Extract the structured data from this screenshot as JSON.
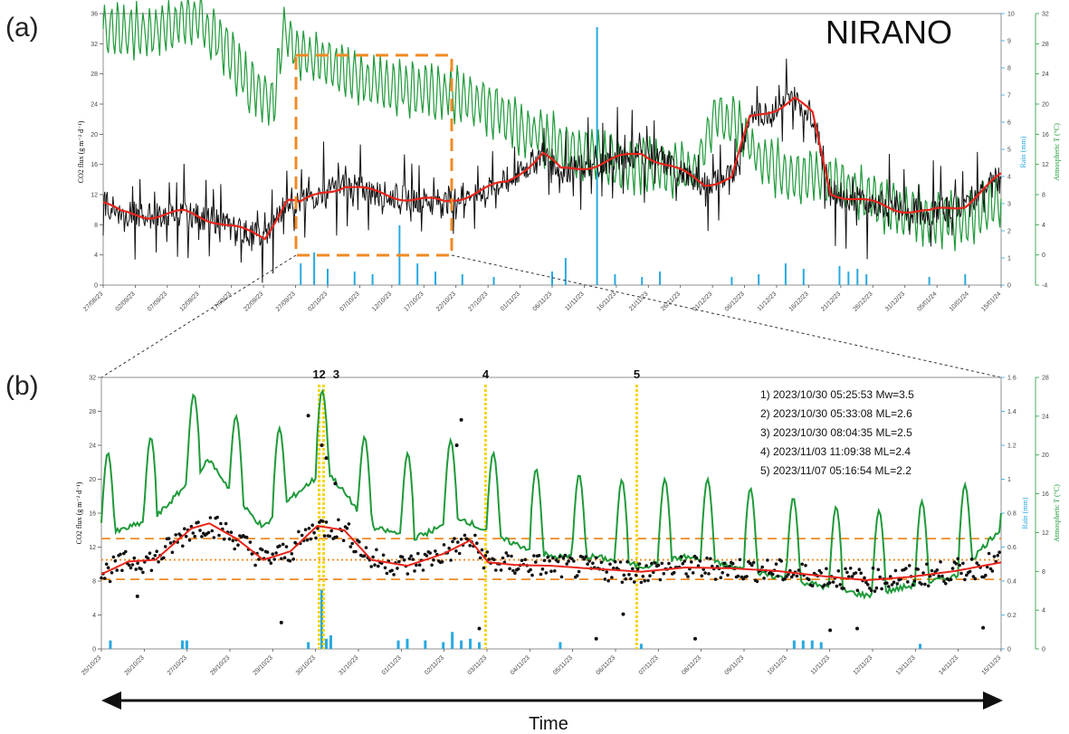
{
  "figure": {
    "panel_a_label": "(a)",
    "panel_b_label": "(b)",
    "site_name": "NIRANO",
    "time_label": "Time"
  },
  "colors": {
    "co2": "#111111",
    "smooth": "#e8251b",
    "temperature": "#1f9a3a",
    "rain": "#29a9e1",
    "zoom_box": "#f08a24",
    "event_line": "#f7d51d",
    "threshold": "#f08a24"
  },
  "chart_data": [
    {
      "id": "panel-a",
      "type": "line",
      "ylabel": "CO2 flux (g m⁻² d⁻¹)",
      "y2label": "Rain (mm)",
      "y3label": "Atmospheric T (°C)",
      "ylim": [
        0,
        36
      ],
      "y2lim": [
        0,
        10
      ],
      "y3lim": [
        -4,
        32
      ],
      "x_tick_labels": [
        "27/08/23",
        "02/09/23",
        "07/09/23",
        "12/09/23",
        "17/09/23",
        "22/09/23",
        "27/09/23",
        "02/10/23",
        "07/10/23",
        "12/10/23",
        "17/10/23",
        "22/10/23",
        "27/10/23",
        "01/11/23",
        "06/11/23",
        "11/11/23",
        "16/11/23",
        "21/11/23",
        "26/11/23",
        "01/12/23",
        "06/12/23",
        "11/12/23",
        "16/12/23",
        "21/12/23",
        "26/12/23",
        "31/12/23",
        "05/01/24",
        "10/01/24",
        "15/01/24"
      ],
      "y_ticks": [
        0,
        4,
        8,
        12,
        16,
        20,
        24,
        28,
        32,
        36
      ],
      "y2_ticks": [
        0,
        1,
        2,
        3,
        4,
        5,
        6,
        7,
        8,
        9,
        10
      ],
      "y3_ticks": [
        -4,
        0,
        4,
        8,
        12,
        16,
        20,
        24,
        28,
        32
      ],
      "co2_smooth_anchors": [
        [
          0,
          11
        ],
        [
          0.02,
          9.5
        ],
        [
          0.05,
          9.2
        ],
        [
          0.09,
          9.6
        ],
        [
          0.13,
          8.4
        ],
        [
          0.16,
          7
        ],
        [
          0.18,
          6.3
        ],
        [
          0.205,
          11.5
        ],
        [
          0.22,
          10.8
        ],
        [
          0.245,
          12.3
        ],
        [
          0.27,
          13.3
        ],
        [
          0.3,
          12.3
        ],
        [
          0.34,
          11.5
        ],
        [
          0.38,
          11
        ],
        [
          0.42,
          12.5
        ],
        [
          0.45,
          13.6
        ],
        [
          0.49,
          17.5
        ],
        [
          0.51,
          15.2
        ],
        [
          0.55,
          16
        ],
        [
          0.6,
          17.6
        ],
        [
          0.64,
          15.2
        ],
        [
          0.67,
          13.4
        ],
        [
          0.7,
          14.3
        ],
        [
          0.72,
          22
        ],
        [
          0.75,
          23.5
        ],
        [
          0.77,
          24.8
        ],
        [
          0.79,
          22.6
        ],
        [
          0.81,
          12.3
        ],
        [
          0.85,
          11
        ],
        [
          0.88,
          10.2
        ],
        [
          0.92,
          9.6
        ],
        [
          0.96,
          10.7
        ],
        [
          1.0,
          14.5
        ]
      ],
      "temperature_anchors": [
        [
          0,
          30
        ],
        [
          0.05,
          29.5
        ],
        [
          0.1,
          31.5
        ],
        [
          0.13,
          28.5
        ],
        [
          0.16,
          23
        ],
        [
          0.19,
          20.5
        ],
        [
          0.2,
          29.5
        ],
        [
          0.23,
          26
        ],
        [
          0.26,
          24.5
        ],
        [
          0.3,
          23
        ],
        [
          0.35,
          22
        ],
        [
          0.4,
          21
        ],
        [
          0.44,
          19
        ],
        [
          0.48,
          16
        ],
        [
          0.52,
          14.3
        ],
        [
          0.57,
          12.2
        ],
        [
          0.62,
          11.7
        ],
        [
          0.66,
          11.4
        ],
        [
          0.68,
          18.5
        ],
        [
          0.71,
          17
        ],
        [
          0.73,
          12.5
        ],
        [
          0.76,
          11
        ],
        [
          0.8,
          10.3
        ],
        [
          0.84,
          8.2
        ],
        [
          0.88,
          6.4
        ],
        [
          0.92,
          4.8
        ],
        [
          0.96,
          4.5
        ],
        [
          1.0,
          7.5
        ]
      ],
      "rain_bars": [
        [
          0.22,
          0.8
        ],
        [
          0.235,
          1.2
        ],
        [
          0.25,
          0.6
        ],
        [
          0.28,
          0.5
        ],
        [
          0.3,
          0.4
        ],
        [
          0.33,
          2.2
        ],
        [
          0.35,
          0.8
        ],
        [
          0.37,
          0.5
        ],
        [
          0.4,
          0.4
        ],
        [
          0.435,
          0.3
        ],
        [
          0.5,
          0.5
        ],
        [
          0.515,
          1.0
        ],
        [
          0.55,
          9.5
        ],
        [
          0.57,
          0.4
        ],
        [
          0.6,
          0.3
        ],
        [
          0.62,
          0.5
        ],
        [
          0.7,
          0.3
        ],
        [
          0.73,
          0.4
        ],
        [
          0.76,
          0.8
        ],
        [
          0.78,
          0.6
        ],
        [
          0.82,
          0.7
        ],
        [
          0.83,
          0.5
        ],
        [
          0.84,
          0.6
        ],
        [
          0.85,
          0.4
        ],
        [
          0.92,
          0.3
        ],
        [
          0.96,
          0.4
        ]
      ]
    },
    {
      "id": "panel-b",
      "type": "scatter",
      "ylabel": "CO2 flux (g m⁻² d⁻¹)",
      "y2label": "Rain (mm)",
      "y3label": "Atmospheric T (°C)",
      "ylim": [
        0,
        32
      ],
      "y2lim": [
        0,
        1.6
      ],
      "y3lim": [
        0,
        28
      ],
      "x_tick_labels": [
        "25/10/23",
        "26/10/23",
        "27/10/23",
        "28/10/23",
        "29/10/23",
        "30/10/23",
        "31/10/23",
        "01/11/23",
        "02/11/23",
        "03/11/23",
        "04/11/23",
        "05/11/23",
        "06/11/23",
        "07/11/23",
        "08/11/23",
        "09/11/23",
        "10/11/23",
        "11/11/23",
        "12/11/23",
        "13/11/23",
        "14/11/23",
        "15/11/23"
      ],
      "y_ticks": [
        0,
        4,
        8,
        12,
        16,
        20,
        24,
        28,
        32
      ],
      "y2_ticks": [
        0,
        0.2,
        0.4,
        0.6,
        0.8,
        1.0,
        1.2,
        1.4,
        1.6
      ],
      "y3_ticks": [
        0,
        4,
        8,
        12,
        16,
        20,
        24,
        28
      ],
      "thresholds": [
        {
          "value": 13,
          "style": "dashed"
        },
        {
          "value": 10.5,
          "style": "dotted"
        },
        {
          "value": 8.2,
          "style": "dashed"
        }
      ],
      "smooth_anchors": [
        [
          0,
          8.8
        ],
        [
          0.03,
          10.3
        ],
        [
          0.06,
          10.5
        ],
        [
          0.1,
          14.2
        ],
        [
          0.12,
          14.8
        ],
        [
          0.15,
          13
        ],
        [
          0.18,
          10.5
        ],
        [
          0.21,
          11.5
        ],
        [
          0.24,
          14.5
        ],
        [
          0.27,
          14
        ],
        [
          0.3,
          10.5
        ],
        [
          0.34,
          9.8
        ],
        [
          0.38,
          11.2
        ],
        [
          0.41,
          12.8
        ],
        [
          0.43,
          10.2
        ],
        [
          0.46,
          9.9
        ],
        [
          0.5,
          9.8
        ],
        [
          0.54,
          9.5
        ],
        [
          0.6,
          9.1
        ],
        [
          0.65,
          9.6
        ],
        [
          0.7,
          9.5
        ],
        [
          0.75,
          9.2
        ],
        [
          0.8,
          8.6
        ],
        [
          0.85,
          8.1
        ],
        [
          0.9,
          8.5
        ],
        [
          0.95,
          9.2
        ],
        [
          1.0,
          10.2
        ]
      ],
      "temperature_anchors": [
        [
          0,
          13
        ],
        [
          0.03,
          14
        ],
        [
          0.06,
          15
        ],
        [
          0.1,
          19
        ],
        [
          0.12,
          21
        ],
        [
          0.15,
          17
        ],
        [
          0.18,
          14
        ],
        [
          0.21,
          17
        ],
        [
          0.25,
          20
        ],
        [
          0.3,
          14
        ],
        [
          0.35,
          13
        ],
        [
          0.4,
          15
        ],
        [
          0.44,
          13
        ],
        [
          0.5,
          11
        ],
        [
          0.55,
          11
        ],
        [
          0.6,
          10
        ],
        [
          0.65,
          11
        ],
        [
          0.7,
          10
        ],
        [
          0.75,
          9
        ],
        [
          0.8,
          8
        ],
        [
          0.85,
          7
        ],
        [
          0.9,
          8
        ],
        [
          0.95,
          9
        ],
        [
          1.0,
          14
        ]
      ],
      "outlier_points": [
        [
          0.04,
          6.2
        ],
        [
          0.2,
          3.1
        ],
        [
          0.23,
          27.5
        ],
        [
          0.245,
          24
        ],
        [
          0.25,
          22.5
        ],
        [
          0.26,
          19.5
        ],
        [
          0.4,
          27
        ],
        [
          0.395,
          24
        ],
        [
          0.42,
          2.4
        ],
        [
          0.55,
          1.2
        ],
        [
          0.58,
          4.1
        ],
        [
          0.66,
          1.2
        ],
        [
          0.81,
          2.2
        ],
        [
          0.84,
          2.4
        ],
        [
          0.98,
          2.5
        ]
      ],
      "rain_bars": [
        [
          0.01,
          0.05
        ],
        [
          0.09,
          0.05
        ],
        [
          0.095,
          0.05
        ],
        [
          0.23,
          0.04
        ],
        [
          0.245,
          0.35
        ],
        [
          0.25,
          0.06
        ],
        [
          0.255,
          0.08
        ],
        [
          0.33,
          0.05
        ],
        [
          0.34,
          0.06
        ],
        [
          0.36,
          0.05
        ],
        [
          0.38,
          0.04
        ],
        [
          0.39,
          0.1
        ],
        [
          0.4,
          0.05
        ],
        [
          0.41,
          0.06
        ],
        [
          0.42,
          0.04
        ],
        [
          0.51,
          0.04
        ],
        [
          0.6,
          0.03
        ],
        [
          0.77,
          0.05
        ],
        [
          0.78,
          0.05
        ],
        [
          0.79,
          0.05
        ],
        [
          0.8,
          0.04
        ],
        [
          0.91,
          0.03
        ]
      ],
      "events": [
        {
          "id": "12",
          "label": "12",
          "x": 0.242
        },
        {
          "id": "3",
          "label": "3",
          "x": 0.247
        },
        {
          "id": "4",
          "label": "4",
          "x": 0.427
        },
        {
          "id": "5",
          "label": "5",
          "x": 0.595
        }
      ],
      "event_list": [
        "1) 2023/10/30 05:25:53 Mw=3.5",
        "2) 2023/10/30 05:33:08 ML=2.6",
        "3) 2023/10/30 08:04:35 ML=2.5",
        "4) 2023/11/03 11:09:38 ML=2.4",
        "5) 2023/11/07 05:16:54 ML=2.2"
      ]
    }
  ]
}
